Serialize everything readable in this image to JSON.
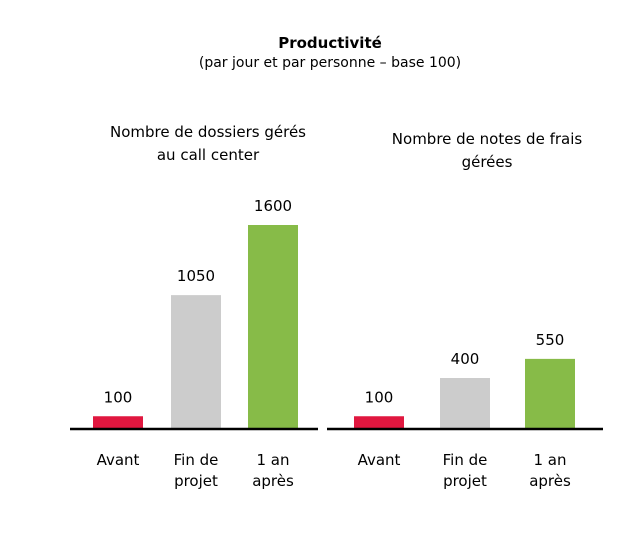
{
  "title": "Productivité",
  "subtitle": "(par jour et par personne – base 100)",
  "colors": {
    "before": "#e0173f",
    "end": "#cccccc",
    "after": "#87bb48",
    "axis": "#000000"
  },
  "chart_data": [
    {
      "type": "bar",
      "title_lines": [
        "Nombre de dossiers gérés",
        "au call center"
      ],
      "categories": [
        [
          "Avant"
        ],
        [
          "Fin de",
          "projet"
        ],
        [
          "1 an",
          "après"
        ]
      ],
      "values": [
        100,
        1050,
        1600
      ],
      "data_labels": [
        "100",
        "1050",
        "1600"
      ],
      "ylim": [
        0,
        1650
      ],
      "grid": false
    },
    {
      "type": "bar",
      "title_lines": [
        "Nombre de notes de frais",
        "gérées"
      ],
      "categories": [
        [
          "Avant"
        ],
        [
          "Fin de",
          "projet"
        ],
        [
          "1 an",
          "après"
        ]
      ],
      "values": [
        100,
        400,
        550
      ],
      "data_labels": [
        "100",
        "400",
        "550"
      ],
      "ylim": [
        0,
        1650
      ],
      "grid": false
    }
  ]
}
